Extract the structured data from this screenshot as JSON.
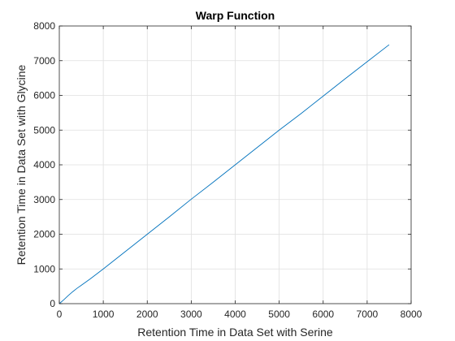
{
  "chart_data": {
    "type": "line",
    "title": "Warp Function",
    "xlabel": "Retention Time in Data Set with Serine",
    "ylabel": "Retention Time in Data Set with Glycine",
    "xlim": [
      0,
      8000
    ],
    "ylim": [
      0,
      8000
    ],
    "xticks": [
      0,
      1000,
      2000,
      3000,
      4000,
      5000,
      6000,
      7000,
      8000
    ],
    "yticks": [
      0,
      1000,
      2000,
      3000,
      4000,
      5000,
      6000,
      7000,
      8000
    ],
    "grid": true,
    "colors": {
      "line": "#0072BD",
      "grid": "#DFDFDF",
      "axis": "#262626"
    },
    "series": [
      {
        "x": [
          0,
          100,
          200,
          300,
          400,
          500,
          700,
          1000,
          1500,
          2000,
          2500,
          3000,
          3500,
          4000,
          4500,
          5000,
          5500,
          6000,
          6500,
          7000,
          7500
        ],
        "y": [
          0,
          110,
          230,
          340,
          440,
          530,
          710,
          1000,
          1500,
          2000,
          2500,
          3010,
          3500,
          4000,
          4500,
          5000,
          5480,
          5980,
          6480,
          6970,
          7460
        ]
      }
    ]
  }
}
